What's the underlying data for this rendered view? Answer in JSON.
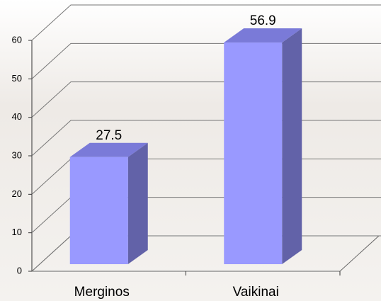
{
  "chart_data": {
    "type": "bar3d",
    "categories": [
      "Merginos",
      "Vaikinai"
    ],
    "values": [
      27.5,
      56.9
    ],
    "color": "#9999ff",
    "ylim": [
      0,
      60
    ],
    "yticks": [
      0,
      10,
      20,
      30,
      40,
      50,
      60
    ],
    "grid": true
  }
}
